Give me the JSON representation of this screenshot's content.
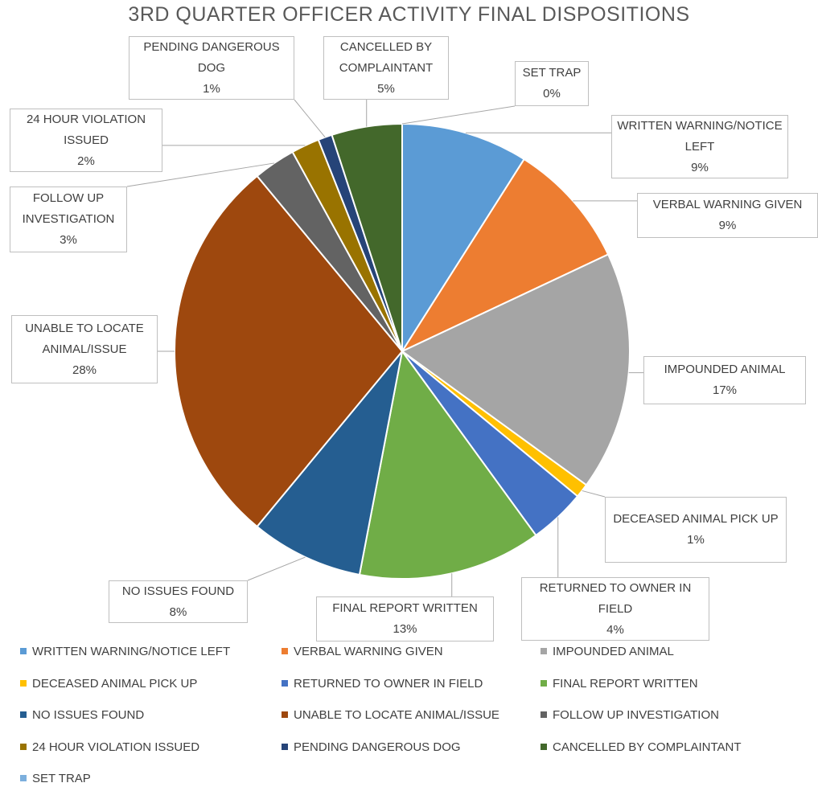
{
  "chart_data": {
    "type": "pie",
    "title": "3RD QUARTER OFFICER ACTIVITY FINAL DISPOSITIONS",
    "categories": [
      "WRITTEN WARNING/NOTICE LEFT",
      "VERBAL WARNING GIVEN",
      "IMPOUNDED ANIMAL",
      "DECEASED ANIMAL PICK UP",
      "RETURNED TO OWNER IN FIELD",
      "FINAL REPORT WRITTEN",
      "NO ISSUES FOUND",
      "UNABLE TO LOCATE ANIMAL/ISSUE",
      "FOLLOW UP INVESTIGATION",
      "24 HOUR VIOLATION ISSUED",
      "PENDING DANGEROUS DOG",
      "CANCELLED BY COMPLAINTANT",
      "SET TRAP"
    ],
    "values": [
      9,
      9,
      17,
      1,
      4,
      13,
      8,
      28,
      3,
      2,
      1,
      5,
      0
    ],
    "value_labels": [
      "9%",
      "9%",
      "17%",
      "1%",
      "4%",
      "13%",
      "8%",
      "28%",
      "3%",
      "2%",
      "1%",
      "5%",
      "0%"
    ],
    "colors": [
      "#5b9bd5",
      "#ed7d31",
      "#a5a5a5",
      "#ffc000",
      "#4472c4",
      "#70ad47",
      "#255e91",
      "#9e480e",
      "#636363",
      "#997300",
      "#264478",
      "#43682b",
      "#7cafdd"
    ],
    "legend": "bottom"
  }
}
